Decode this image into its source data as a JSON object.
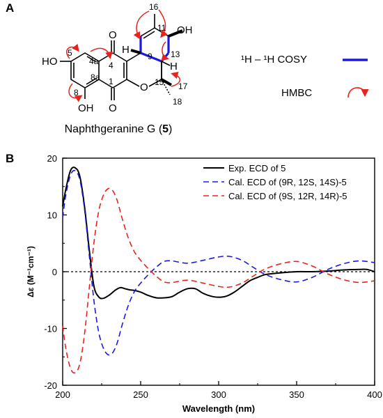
{
  "panel_a": {
    "letter": "A",
    "compound_name": "Naphthgeranine G (",
    "compound_number": "5",
    "compound_name_close": ")",
    "atom_labels": {
      "c16": "16",
      "c11": "11",
      "c13": "13",
      "c9": "9",
      "c15": "15",
      "c17": "17",
      "c18": "18",
      "c5": "5",
      "c4a": "4a",
      "c4": "4",
      "c1": "1",
      "c8a": "8a",
      "c8": "8",
      "oh_top": "OH",
      "ho_left": "HO",
      "oh_bottom": "OH",
      "o_ketone_top": "O",
      "o_ketone_bottom": "O",
      "o_ring": "O",
      "h9": "H",
      "h14": "H"
    },
    "legend": {
      "cosy_label": "¹H – ¹H COSY",
      "hmbc_label": "HMBC",
      "cosy_color": "#1a1adc",
      "hmbc_color": "#e8231c"
    }
  },
  "panel_b": {
    "letter": "B"
  },
  "chart_data": {
    "type": "line",
    "xlabel": "Wavelength (nm)",
    "ylabel": "Δε (M⁻¹cm⁻¹)",
    "xlim": [
      200,
      400
    ],
    "ylim": [
      -20,
      20
    ],
    "x_ticks": [
      200,
      250,
      300,
      350,
      400
    ],
    "y_ticks": [
      20,
      10,
      0,
      -10,
      -20
    ],
    "zero_line": "dotted",
    "legend_position": "top-right",
    "legend": [
      "Exp. ECD of 5",
      "Cal. ECD of (9R, 12S, 14S)-5",
      "Cal. ECD of (9S, 12R, 14R)-5"
    ],
    "series": [
      {
        "name": "Exp. ECD of 5",
        "style": "solid",
        "color": "#000000",
        "x": [
          200,
          202,
          205,
          208,
          211,
          214,
          217,
          220,
          223,
          226,
          230,
          234,
          237,
          240,
          243,
          246,
          250,
          255,
          260,
          265,
          270,
          275,
          280,
          285,
          290,
          295,
          300,
          305,
          310,
          315,
          320,
          325,
          330,
          340,
          350,
          360,
          370,
          380,
          390,
          395,
          400
        ],
        "y": [
          11.5,
          14.5,
          17.8,
          18.3,
          16.8,
          11.5,
          4.0,
          -2.5,
          -4.4,
          -4.7,
          -4.1,
          -3.2,
          -2.8,
          -3.0,
          -3.2,
          -3.3,
          -3.6,
          -4.2,
          -4.6,
          -4.6,
          -4.4,
          -3.6,
          -3.0,
          -3.0,
          -3.8,
          -4.3,
          -4.5,
          -4.3,
          -3.6,
          -2.6,
          -1.6,
          -1.0,
          -0.5,
          -0.2,
          0.0,
          0.0,
          0.1,
          0.3,
          0.4,
          0.4,
          0.0
        ]
      },
      {
        "name": "Cal. ECD of (9R, 12S, 14S)-5",
        "style": "dashed",
        "color": "#1a1adc",
        "x": [
          200,
          202,
          205,
          208,
          211,
          214,
          217,
          220,
          223,
          226,
          229,
          232,
          235,
          238,
          242,
          246,
          250,
          255,
          260,
          265,
          270,
          280,
          290,
          300,
          307,
          315,
          322,
          330,
          340,
          350,
          360,
          370,
          380,
          390,
          400
        ],
        "y": [
          9.5,
          13.5,
          17.0,
          17.8,
          16.2,
          11.0,
          3.0,
          -5.0,
          -10.5,
          -13.4,
          -14.6,
          -14.3,
          -12.5,
          -9.5,
          -6.0,
          -3.5,
          -2.0,
          -0.5,
          0.8,
          1.8,
          1.9,
          1.5,
          2.0,
          2.6,
          2.7,
          2.0,
          0.8,
          -0.5,
          -1.4,
          -1.8,
          -1.0,
          0.4,
          1.4,
          1.9,
          1.6
        ]
      },
      {
        "name": "Cal. ECD of (9S, 12R, 14R)-5",
        "style": "dashed",
        "color": "#e8231c",
        "x": [
          200,
          202,
          205,
          208,
          211,
          214,
          217,
          220,
          223,
          226,
          229,
          232,
          235,
          238,
          242,
          246,
          250,
          255,
          260,
          265,
          270,
          280,
          290,
          300,
          307,
          315,
          322,
          330,
          340,
          350,
          360,
          370,
          380,
          390,
          400
        ],
        "y": [
          -9.5,
          -13.5,
          -17.0,
          -17.8,
          -16.2,
          -11.0,
          -3.0,
          5.0,
          10.5,
          13.4,
          14.6,
          14.3,
          12.5,
          9.5,
          6.0,
          3.5,
          2.0,
          0.5,
          -0.8,
          -1.8,
          -1.9,
          -1.5,
          -2.0,
          -2.6,
          -2.7,
          -2.0,
          -0.8,
          0.5,
          1.4,
          1.8,
          1.0,
          -0.4,
          -1.4,
          -1.9,
          -1.6
        ]
      }
    ]
  }
}
